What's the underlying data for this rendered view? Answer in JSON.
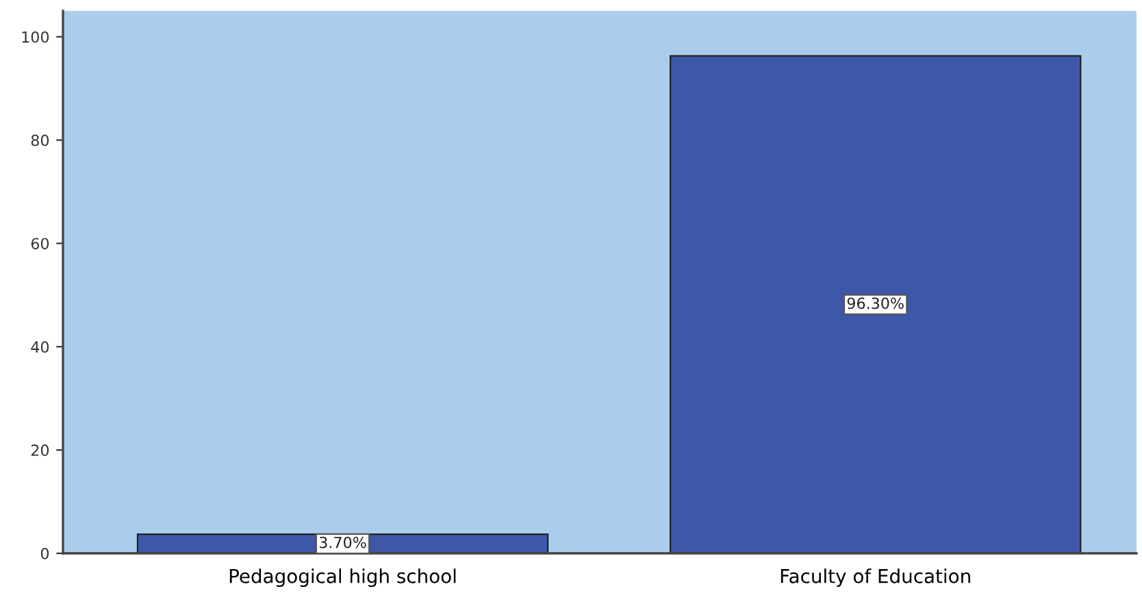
{
  "chart_data": {
    "type": "bar",
    "categories": [
      "Pedagogical high school",
      "Faculty of Education"
    ],
    "values": [
      3.7,
      96.3
    ],
    "value_labels": [
      "3.70%",
      "96.30%"
    ],
    "color": "#3d57a9",
    "ylim": [
      0,
      105
    ],
    "yticks": [
      0,
      20,
      40,
      60,
      80,
      100
    ],
    "grid": false,
    "legend": false
  }
}
